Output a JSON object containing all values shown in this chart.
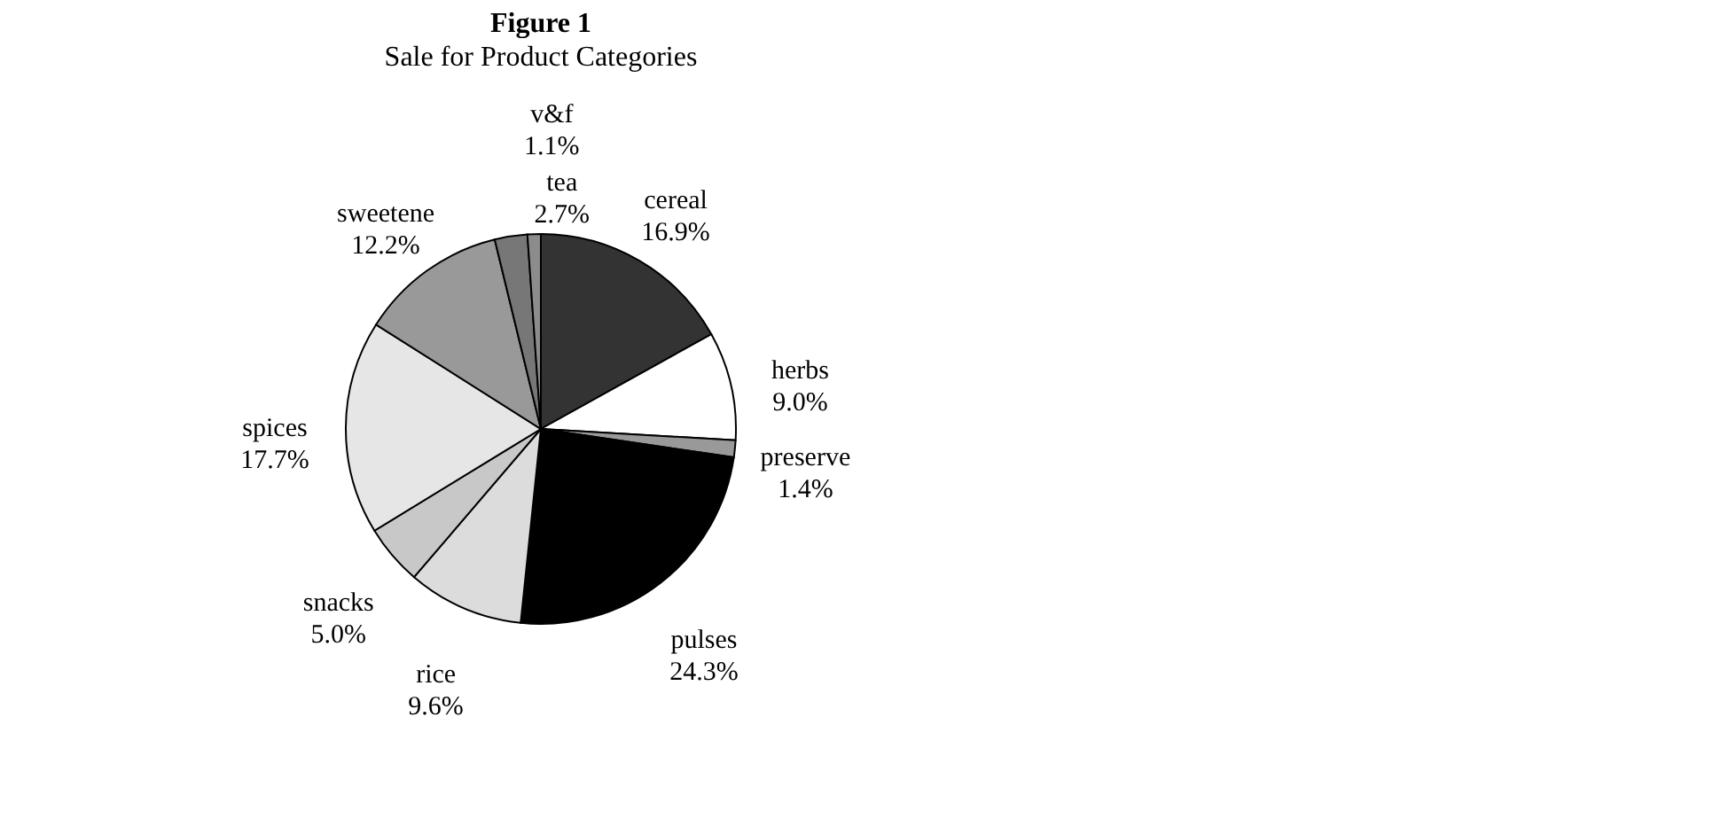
{
  "chart_data": {
    "type": "pie",
    "title": "Figure 1",
    "subtitle": "Sale for Product Categories",
    "categories": [
      "cereal",
      "herbs",
      "preserve",
      "pulses",
      "rice",
      "snacks",
      "spices",
      "sweetene",
      "tea",
      "v&f"
    ],
    "values": [
      16.9,
      9.0,
      1.4,
      24.3,
      9.6,
      5.0,
      17.7,
      12.2,
      2.7,
      1.1
    ],
    "value_labels": [
      "16.9%",
      "9.0%",
      "1.4%",
      "24.3%",
      "9.6%",
      "5.0%",
      "17.7%",
      "12.2%",
      "2.7%",
      "1.1%"
    ],
    "colors": [
      "#333333",
      "#ffffff",
      "#999999",
      "#000000",
      "#dcdcdc",
      "#c8c8c8",
      "#e6e6e6",
      "#999999",
      "#777777",
      "#8c8c8c"
    ],
    "legend": false
  }
}
